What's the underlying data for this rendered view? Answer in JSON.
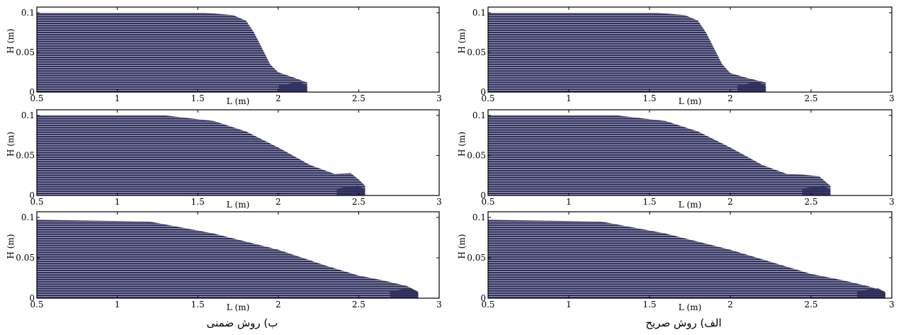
{
  "chart_data": {
    "type": "scatter",
    "description_colors": {
      "particles": "#2d2d5c",
      "frame": "#000000"
    },
    "xlabel": "L (m)",
    "ylabel": "H (m)",
    "xlim": [
      0.5,
      3
    ],
    "ylim": [
      0,
      0.1
    ],
    "xticks": [
      "0.5",
      "1",
      "1.5",
      "2",
      "2.5",
      "3"
    ],
    "yticks": [
      "0",
      "0.05",
      "0.1"
    ],
    "grid": false,
    "panels": [
      {
        "column": "implicit",
        "row": 1,
        "front_x": 2.18,
        "profile": [
          [
            0.5,
            0.1
          ],
          [
            1.55,
            0.1
          ],
          [
            1.72,
            0.097
          ],
          [
            1.8,
            0.09
          ],
          [
            1.85,
            0.075
          ],
          [
            1.9,
            0.055
          ],
          [
            1.95,
            0.035
          ],
          [
            2.0,
            0.025
          ],
          [
            2.1,
            0.018
          ],
          [
            2.18,
            0.012
          ],
          [
            2.18,
            0.0
          ]
        ]
      },
      {
        "column": "implicit",
        "row": 2,
        "front_x": 2.54,
        "profile": [
          [
            0.5,
            0.1
          ],
          [
            1.3,
            0.1
          ],
          [
            1.6,
            0.093
          ],
          [
            1.8,
            0.08
          ],
          [
            2.0,
            0.06
          ],
          [
            2.2,
            0.038
          ],
          [
            2.35,
            0.027
          ],
          [
            2.45,
            0.028
          ],
          [
            2.5,
            0.02
          ],
          [
            2.54,
            0.012
          ],
          [
            2.54,
            0.0
          ]
        ]
      },
      {
        "column": "implicit",
        "row": 3,
        "front_x": 2.87,
        "profile": [
          [
            0.5,
            0.097
          ],
          [
            1.2,
            0.095
          ],
          [
            1.6,
            0.08
          ],
          [
            2.0,
            0.06
          ],
          [
            2.3,
            0.04
          ],
          [
            2.5,
            0.028
          ],
          [
            2.65,
            0.022
          ],
          [
            2.8,
            0.015
          ],
          [
            2.87,
            0.008
          ],
          [
            2.87,
            0.0
          ]
        ]
      },
      {
        "column": "explicit",
        "row": 1,
        "front_x": 2.22,
        "profile": [
          [
            0.5,
            0.1
          ],
          [
            1.55,
            0.1
          ],
          [
            1.72,
            0.097
          ],
          [
            1.8,
            0.09
          ],
          [
            1.85,
            0.075
          ],
          [
            1.9,
            0.055
          ],
          [
            1.95,
            0.035
          ],
          [
            2.0,
            0.024
          ],
          [
            2.1,
            0.018
          ],
          [
            2.22,
            0.012
          ],
          [
            2.22,
            0.0
          ]
        ]
      },
      {
        "column": "explicit",
        "row": 2,
        "front_x": 2.62,
        "profile": [
          [
            0.5,
            0.1
          ],
          [
            1.3,
            0.1
          ],
          [
            1.6,
            0.093
          ],
          [
            1.8,
            0.08
          ],
          [
            2.0,
            0.06
          ],
          [
            2.2,
            0.038
          ],
          [
            2.35,
            0.027
          ],
          [
            2.45,
            0.026
          ],
          [
            2.55,
            0.024
          ],
          [
            2.62,
            0.012
          ],
          [
            2.62,
            0.0
          ]
        ]
      },
      {
        "column": "explicit",
        "row": 3,
        "front_x": 2.96,
        "profile": [
          [
            0.5,
            0.097
          ],
          [
            1.2,
            0.095
          ],
          [
            1.6,
            0.08
          ],
          [
            2.0,
            0.06
          ],
          [
            2.3,
            0.042
          ],
          [
            2.5,
            0.03
          ],
          [
            2.7,
            0.022
          ],
          [
            2.85,
            0.015
          ],
          [
            2.96,
            0.008
          ],
          [
            2.96,
            0.0
          ]
        ]
      }
    ]
  },
  "captions": {
    "implicit": "ب) روش ضمنی",
    "explicit": "الف) روش صریح"
  }
}
